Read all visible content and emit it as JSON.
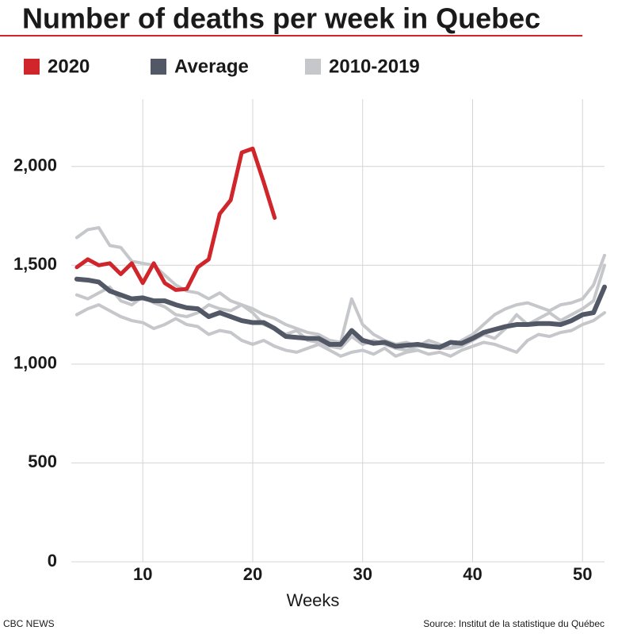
{
  "chart_data": {
    "type": "line",
    "title": "Number of deaths per week in Quebec",
    "x_label": "Weeks",
    "source": "Source:  Institut de la statistique du Québec",
    "credit": "CBC NEWS",
    "x": [
      4,
      5,
      6,
      7,
      8,
      9,
      10,
      11,
      12,
      13,
      14,
      15,
      16,
      17,
      18,
      19,
      20,
      21,
      22,
      23,
      24,
      25,
      26,
      27,
      28,
      29,
      30,
      31,
      32,
      33,
      34,
      35,
      36,
      37,
      38,
      39,
      40,
      41,
      42,
      43,
      44,
      45,
      46,
      47,
      48,
      49,
      50,
      51,
      52
    ],
    "series": [
      {
        "name": "2020",
        "color": "#d0262b",
        "x": [
          4,
          5,
          6,
          7,
          8,
          9,
          10,
          11,
          12,
          13,
          14,
          15,
          16,
          17,
          18,
          19,
          20,
          21,
          22
        ],
        "values": [
          1490,
          1530,
          1500,
          1510,
          1455,
          1510,
          1410,
          1510,
          1410,
          1375,
          1380,
          1490,
          1530,
          1760,
          1830,
          2070,
          2090,
          1920,
          1740
        ]
      },
      {
        "name": "Average",
        "color": "#525866",
        "values": [
          1430,
          1425,
          1415,
          1370,
          1350,
          1330,
          1335,
          1320,
          1320,
          1300,
          1285,
          1280,
          1240,
          1260,
          1240,
          1220,
          1210,
          1210,
          1180,
          1140,
          1135,
          1130,
          1130,
          1100,
          1100,
          1170,
          1120,
          1105,
          1110,
          1090,
          1095,
          1100,
          1090,
          1085,
          1110,
          1105,
          1130,
          1160,
          1175,
          1190,
          1200,
          1200,
          1205,
          1205,
          1200,
          1220,
          1250,
          1260,
          1390
        ]
      },
      {
        "name": "2010-2019",
        "color": "#c6c7cb",
        "values": [
          1640,
          1680,
          1690,
          1600,
          1590,
          1520,
          1510,
          1500,
          1450,
          1400,
          1370,
          1360,
          1330,
          1360,
          1320,
          1300,
          1280,
          1250,
          1230,
          1200,
          1180,
          1160,
          1150,
          1120,
          1110,
          1330,
          1200,
          1150,
          1120,
          1100,
          1110,
          1090,
          1100,
          1080,
          1080,
          1120,
          1150,
          1200,
          1250,
          1280,
          1300,
          1310,
          1290,
          1270,
          1300,
          1310,
          1330,
          1400,
          1550
        ]
      },
      {
        "color": "#c6c7cb",
        "values": [
          1250,
          1280,
          1300,
          1270,
          1240,
          1220,
          1210,
          1180,
          1200,
          1230,
          1200,
          1190,
          1150,
          1170,
          1160,
          1120,
          1100,
          1120,
          1090,
          1070,
          1060,
          1080,
          1100,
          1070,
          1040,
          1060,
          1070,
          1050,
          1080,
          1040,
          1060,
          1070,
          1050,
          1060,
          1040,
          1070,
          1090,
          1110,
          1100,
          1080,
          1060,
          1120,
          1150,
          1140,
          1160,
          1170,
          1200,
          1220,
          1260
        ]
      },
      {
        "color": "#c6c7cb",
        "values": [
          1350,
          1330,
          1360,
          1390,
          1320,
          1300,
          1340,
          1310,
          1290,
          1250,
          1240,
          1260,
          1300,
          1280,
          1270,
          1300,
          1260,
          1200,
          1180,
          1150,
          1170,
          1120,
          1110,
          1090,
          1080,
          1140,
          1100,
          1120,
          1100,
          1080,
          1070,
          1090,
          1120,
          1100,
          1080,
          1090,
          1120,
          1150,
          1130,
          1180,
          1250,
          1200,
          1230,
          1260,
          1220,
          1250,
          1280,
          1320,
          1500
        ]
      }
    ],
    "xlim": [
      3.5,
      52
    ],
    "xticks": [
      10,
      20,
      30,
      40,
      50
    ],
    "ylim": [
      0,
      2340
    ],
    "yticks": [
      0,
      500,
      {
        "value": 1000,
        "label": "1,000"
      },
      {
        "value": 1500,
        "label": "1,500"
      },
      {
        "value": 2000,
        "label": "2,000"
      }
    ],
    "grid": true
  }
}
